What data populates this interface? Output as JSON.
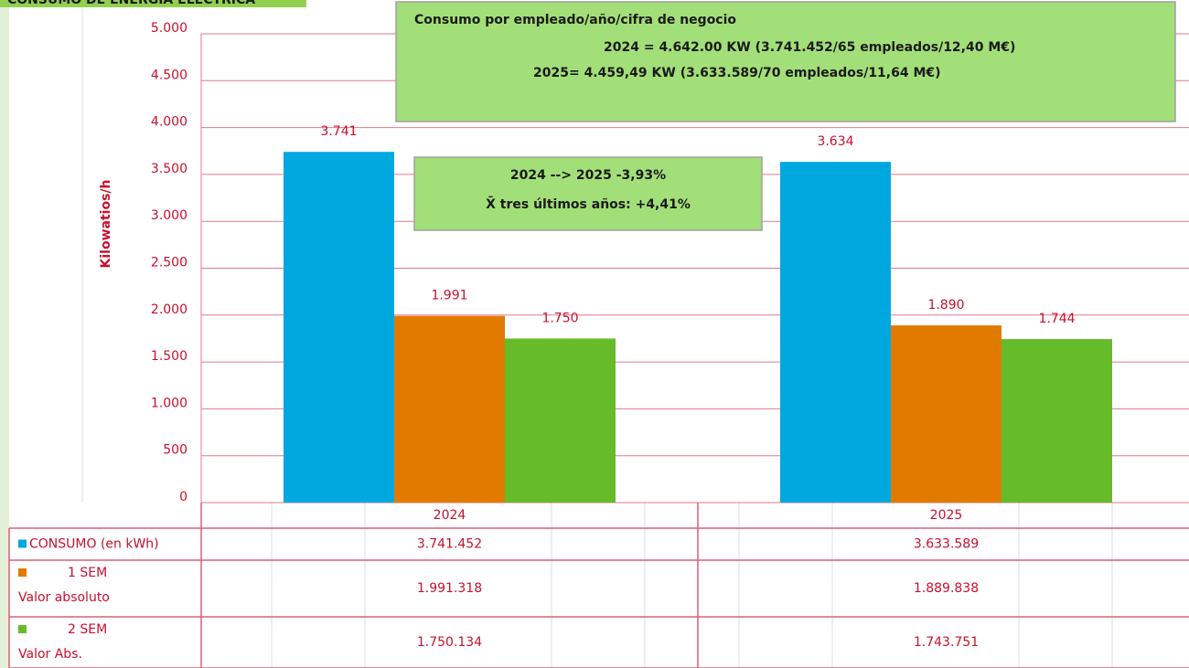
{
  "chart_data": {
    "type": "bar",
    "title": "CONSUMO DE ENERGÍA ELÉCTRICA",
    "y_label": "Kilowatios/h",
    "categories": [
      "2024",
      "2025"
    ],
    "series": [
      {
        "name": "CONSUMO (en kWh)",
        "color": "#00a8e0",
        "values": [
          3741,
          3634
        ],
        "value_labels": [
          "3.741",
          "3.634"
        ],
        "table_values": [
          "3.741.452",
          "3.633.589"
        ]
      },
      {
        "name": "1 SEM",
        "name_line2": "Valor absoluto",
        "color": "#e07b00",
        "values": [
          1991,
          1890
        ],
        "value_labels": [
          "1.991",
          "1.890"
        ],
        "table_values": [
          "1.991.318",
          "1.889.838"
        ]
      },
      {
        "name": "2 SEM",
        "name_line2": "Valor Abs.",
        "color": "#66bb2a",
        "values": [
          1750,
          1744
        ],
        "value_labels": [
          "1.750",
          "1.744"
        ],
        "table_values": [
          "1.750.134",
          "1.743.751"
        ]
      }
    ],
    "ylim": [
      0,
      5000
    ],
    "yticks": [
      0,
      500,
      {
        "value": 1000,
        "label": "1.000"
      },
      {
        "value": 1500,
        "label": "1.500"
      },
      {
        "value": 2000,
        "label": "2.000"
      },
      {
        "value": 2500,
        "label": "2.500"
      },
      {
        "value": 3000,
        "label": "3.000"
      },
      {
        "value": 3500,
        "label": "3.500"
      },
      {
        "value": 4000,
        "label": "4.000"
      },
      {
        "value": 4500,
        "label": "4.500"
      },
      {
        "value": 5000,
        "label": "5.000"
      }
    ],
    "grid": true,
    "annotations": [
      {
        "lines": [
          "Consumo por empleado/año/cifra de negocio",
          "2024 = 4.642.00 KW (3.741.452/65 empleados/12,40 M€)",
          "2025= 4.459,49 KW (3.633.589/70 empleados/11,64 M€)"
        ]
      },
      {
        "lines": [
          "2024 --> 2025  -3,93%",
          "X̄ tres últimos años:  +4,41%"
        ]
      }
    ]
  }
}
